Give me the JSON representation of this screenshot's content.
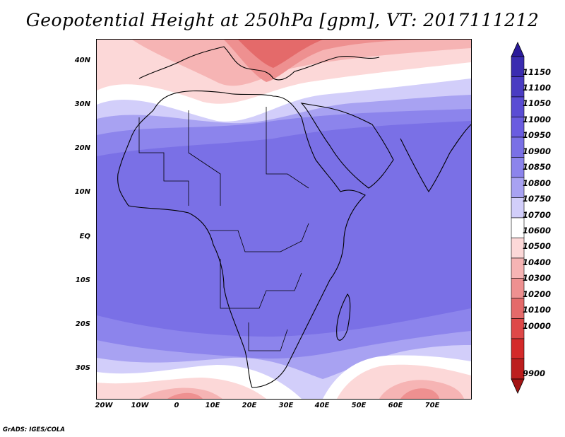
{
  "title": "Geopotential Height at 250hPa [gpm], VT: 2017111212",
  "footer": "GrADS: IGES/COLA",
  "map": {
    "lat_labels": [
      "40N",
      "30N",
      "20N",
      "10N",
      "EQ",
      "10S",
      "20S",
      "30S"
    ],
    "lon_labels": [
      "20W",
      "10W",
      "0",
      "10E",
      "20E",
      "30E",
      "40E",
      "50E",
      "60E",
      "70E"
    ]
  },
  "colorbar": {
    "levels": [
      "11150",
      "11100",
      "11050",
      "11000",
      "10950",
      "10900",
      "10850",
      "10800",
      "10750",
      "10700",
      "10600",
      "10500",
      "10400",
      "10300",
      "10200",
      "10100",
      "10000",
      "9900"
    ],
    "colors": [
      "#2a1a9a",
      "#3a2cb0",
      "#4a3cc2",
      "#5a4cd4",
      "#6a5ce0",
      "#7a70e6",
      "#8c84ec",
      "#a8a2f2",
      "#d2cefa",
      "#ffffff",
      "#fcd8d8",
      "#f6b4b4",
      "#ee9090",
      "#e46a6a",
      "#de4848",
      "#d42a2a",
      "#bc1e1e",
      "#a41414"
    ]
  },
  "chart_data": {
    "type": "heatmap",
    "title": "Geopotential Height at 250hPa [gpm], VT: 2017111212",
    "variable": "Geopotential Height at 250hPa",
    "units": "gpm",
    "valid_time": "2017111212",
    "x_ticks": [
      "20W",
      "10W",
      "0",
      "10E",
      "20E",
      "30E",
      "40E",
      "50E",
      "60E",
      "70E"
    ],
    "y_ticks": [
      "40N",
      "30N",
      "20N",
      "10N",
      "EQ",
      "10S",
      "20S",
      "30S"
    ],
    "contour_levels": [
      9900,
      10000,
      10100,
      10200,
      10300,
      10400,
      10500,
      10600,
      10700,
      10750,
      10800,
      10850,
      10900,
      10950,
      11000,
      11050,
      11100,
      11150
    ],
    "scale": "diverging red-white-blue"
  }
}
